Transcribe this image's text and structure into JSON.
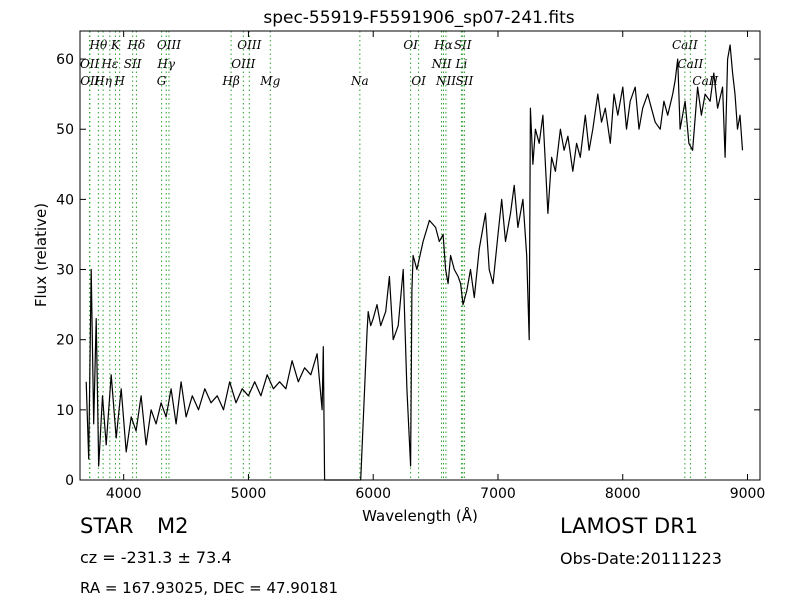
{
  "chart_data": {
    "type": "line",
    "title": "spec-55919-F5591906_sp07-241.fits",
    "xlabel": "Wavelength (Å)",
    "ylabel": "Flux (relative)",
    "xlim": [
      3650,
      9100
    ],
    "ylim": [
      0,
      64
    ],
    "xticks": [
      4000,
      5000,
      6000,
      7000,
      8000,
      9000
    ],
    "yticks": [
      0,
      10,
      20,
      30,
      40,
      50,
      60
    ],
    "grid": false,
    "series": [
      {
        "color": "#000000",
        "x": [
          3700,
          3720,
          3740,
          3760,
          3780,
          3800,
          3830,
          3860,
          3900,
          3940,
          3980,
          4020,
          4060,
          4100,
          4140,
          4180,
          4220,
          4260,
          4300,
          4340,
          4380,
          4420,
          4460,
          4500,
          4550,
          4600,
          4650,
          4700,
          4750,
          4800,
          4850,
          4900,
          4950,
          5000,
          5050,
          5100,
          5150,
          5200,
          5250,
          5300,
          5350,
          5400,
          5450,
          5500,
          5550,
          5590,
          5600,
          5610,
          5900,
          5950,
          5960,
          5980,
          6000,
          6030,
          6060,
          6100,
          6130,
          6160,
          6200,
          6240,
          6270,
          6300,
          6310,
          6320,
          6350,
          6400,
          6450,
          6500,
          6530,
          6560,
          6580,
          6600,
          6620,
          6650,
          6680,
          6700,
          6720,
          6750,
          6780,
          6810,
          6850,
          6900,
          6930,
          6960,
          7000,
          7030,
          7060,
          7100,
          7130,
          7160,
          7200,
          7230,
          7250,
          7260,
          7280,
          7300,
          7330,
          7360,
          7400,
          7430,
          7460,
          7500,
          7530,
          7560,
          7600,
          7630,
          7660,
          7700,
          7730,
          7760,
          7800,
          7830,
          7860,
          7900,
          7930,
          7960,
          8000,
          8030,
          8060,
          8100,
          8130,
          8160,
          8200,
          8230,
          8260,
          8300,
          8330,
          8360,
          8400,
          8420,
          8440,
          8460,
          8500,
          8530,
          8560,
          8600,
          8630,
          8660,
          8700,
          8730,
          8760,
          8800,
          8820,
          8840,
          8860,
          8880,
          8900,
          8920,
          8940,
          8960
        ],
        "values": [
          14,
          3,
          30,
          8,
          23,
          2,
          12,
          5,
          15,
          6,
          13,
          4,
          9,
          7,
          12,
          5,
          10,
          8,
          11,
          9,
          13,
          8,
          14,
          9,
          12,
          10,
          13,
          11,
          12,
          10,
          14,
          11,
          13,
          12,
          14,
          12,
          15,
          13,
          14,
          13,
          17,
          14,
          16,
          15,
          18,
          10,
          19,
          0,
          0,
          21,
          24,
          22,
          23,
          25,
          22,
          24,
          29,
          20,
          22,
          30,
          13,
          2,
          27,
          32,
          30,
          34,
          37,
          36,
          34,
          35,
          30,
          28,
          32,
          30,
          29,
          28,
          25,
          27,
          30,
          26,
          33,
          38,
          30,
          28,
          35,
          40,
          34,
          38,
          42,
          36,
          40,
          32,
          20,
          53,
          45,
          50,
          48,
          52,
          38,
          46,
          44,
          50,
          47,
          49,
          44,
          48,
          46,
          52,
          47,
          50,
          55,
          51,
          53,
          48,
          55,
          52,
          56,
          50,
          54,
          56,
          50,
          53,
          55,
          53,
          51,
          50,
          54,
          52,
          55,
          57,
          60,
          50,
          54,
          48,
          47,
          56,
          52,
          55,
          54,
          58,
          53,
          56,
          46,
          60,
          62,
          58,
          55,
          50,
          52,
          47
        ]
      }
    ],
    "line_markers": [
      {
        "label": "Hθ",
        "x": 3797,
        "row": 0
      },
      {
        "label": "K",
        "x": 3934,
        "row": 0
      },
      {
        "label": "Hδ",
        "x": 4102,
        "row": 0
      },
      {
        "label": "OIII",
        "x": 4363,
        "row": 0
      },
      {
        "label": "OIII",
        "x": 5007,
        "row": 0
      },
      {
        "label": "OI",
        "x": 6300,
        "row": 0
      },
      {
        "label": "Hα",
        "x": 6563,
        "row": 0
      },
      {
        "label": "SII",
        "x": 6717,
        "row": 0
      },
      {
        "label": "CaII",
        "x": 8498,
        "row": 0
      },
      {
        "label": "OII",
        "x": 3727,
        "row": 1
      },
      {
        "label": "Hε",
        "x": 3889,
        "row": 1
      },
      {
        "label": "SII",
        "x": 4072,
        "row": 1
      },
      {
        "label": "Hγ",
        "x": 4341,
        "row": 1
      },
      {
        "label": "OIII",
        "x": 4959,
        "row": 1
      },
      {
        "label": "NII",
        "x": 6548,
        "row": 1
      },
      {
        "label": "Li",
        "x": 6707,
        "row": 1
      },
      {
        "label": "CaII",
        "x": 8542,
        "row": 1
      },
      {
        "label": "OII",
        "x": 3729,
        "row": 2
      },
      {
        "label": "Hη",
        "x": 3835,
        "row": 2
      },
      {
        "label": "H",
        "x": 3968,
        "row": 2
      },
      {
        "label": "G",
        "x": 4304,
        "row": 2
      },
      {
        "label": "Hβ",
        "x": 4861,
        "row": 2
      },
      {
        "label": "Mg",
        "x": 5175,
        "row": 2
      },
      {
        "label": "Na",
        "x": 5893,
        "row": 2
      },
      {
        "label": "OI",
        "x": 6364,
        "row": 2
      },
      {
        "label": "NII",
        "x": 6583,
        "row": 2
      },
      {
        "label": "SII",
        "x": 6731,
        "row": 2
      },
      {
        "label": "CaII",
        "x": 8662,
        "row": 2
      }
    ]
  },
  "info": {
    "object_class": "STAR",
    "subclass": "M2",
    "survey": "LAMOST DR1",
    "cz": "cz = -231.3 ± 73.4",
    "obs_date": "Obs-Date:20111223",
    "coords": "RA = 167.93025, DEC = 47.90181"
  }
}
